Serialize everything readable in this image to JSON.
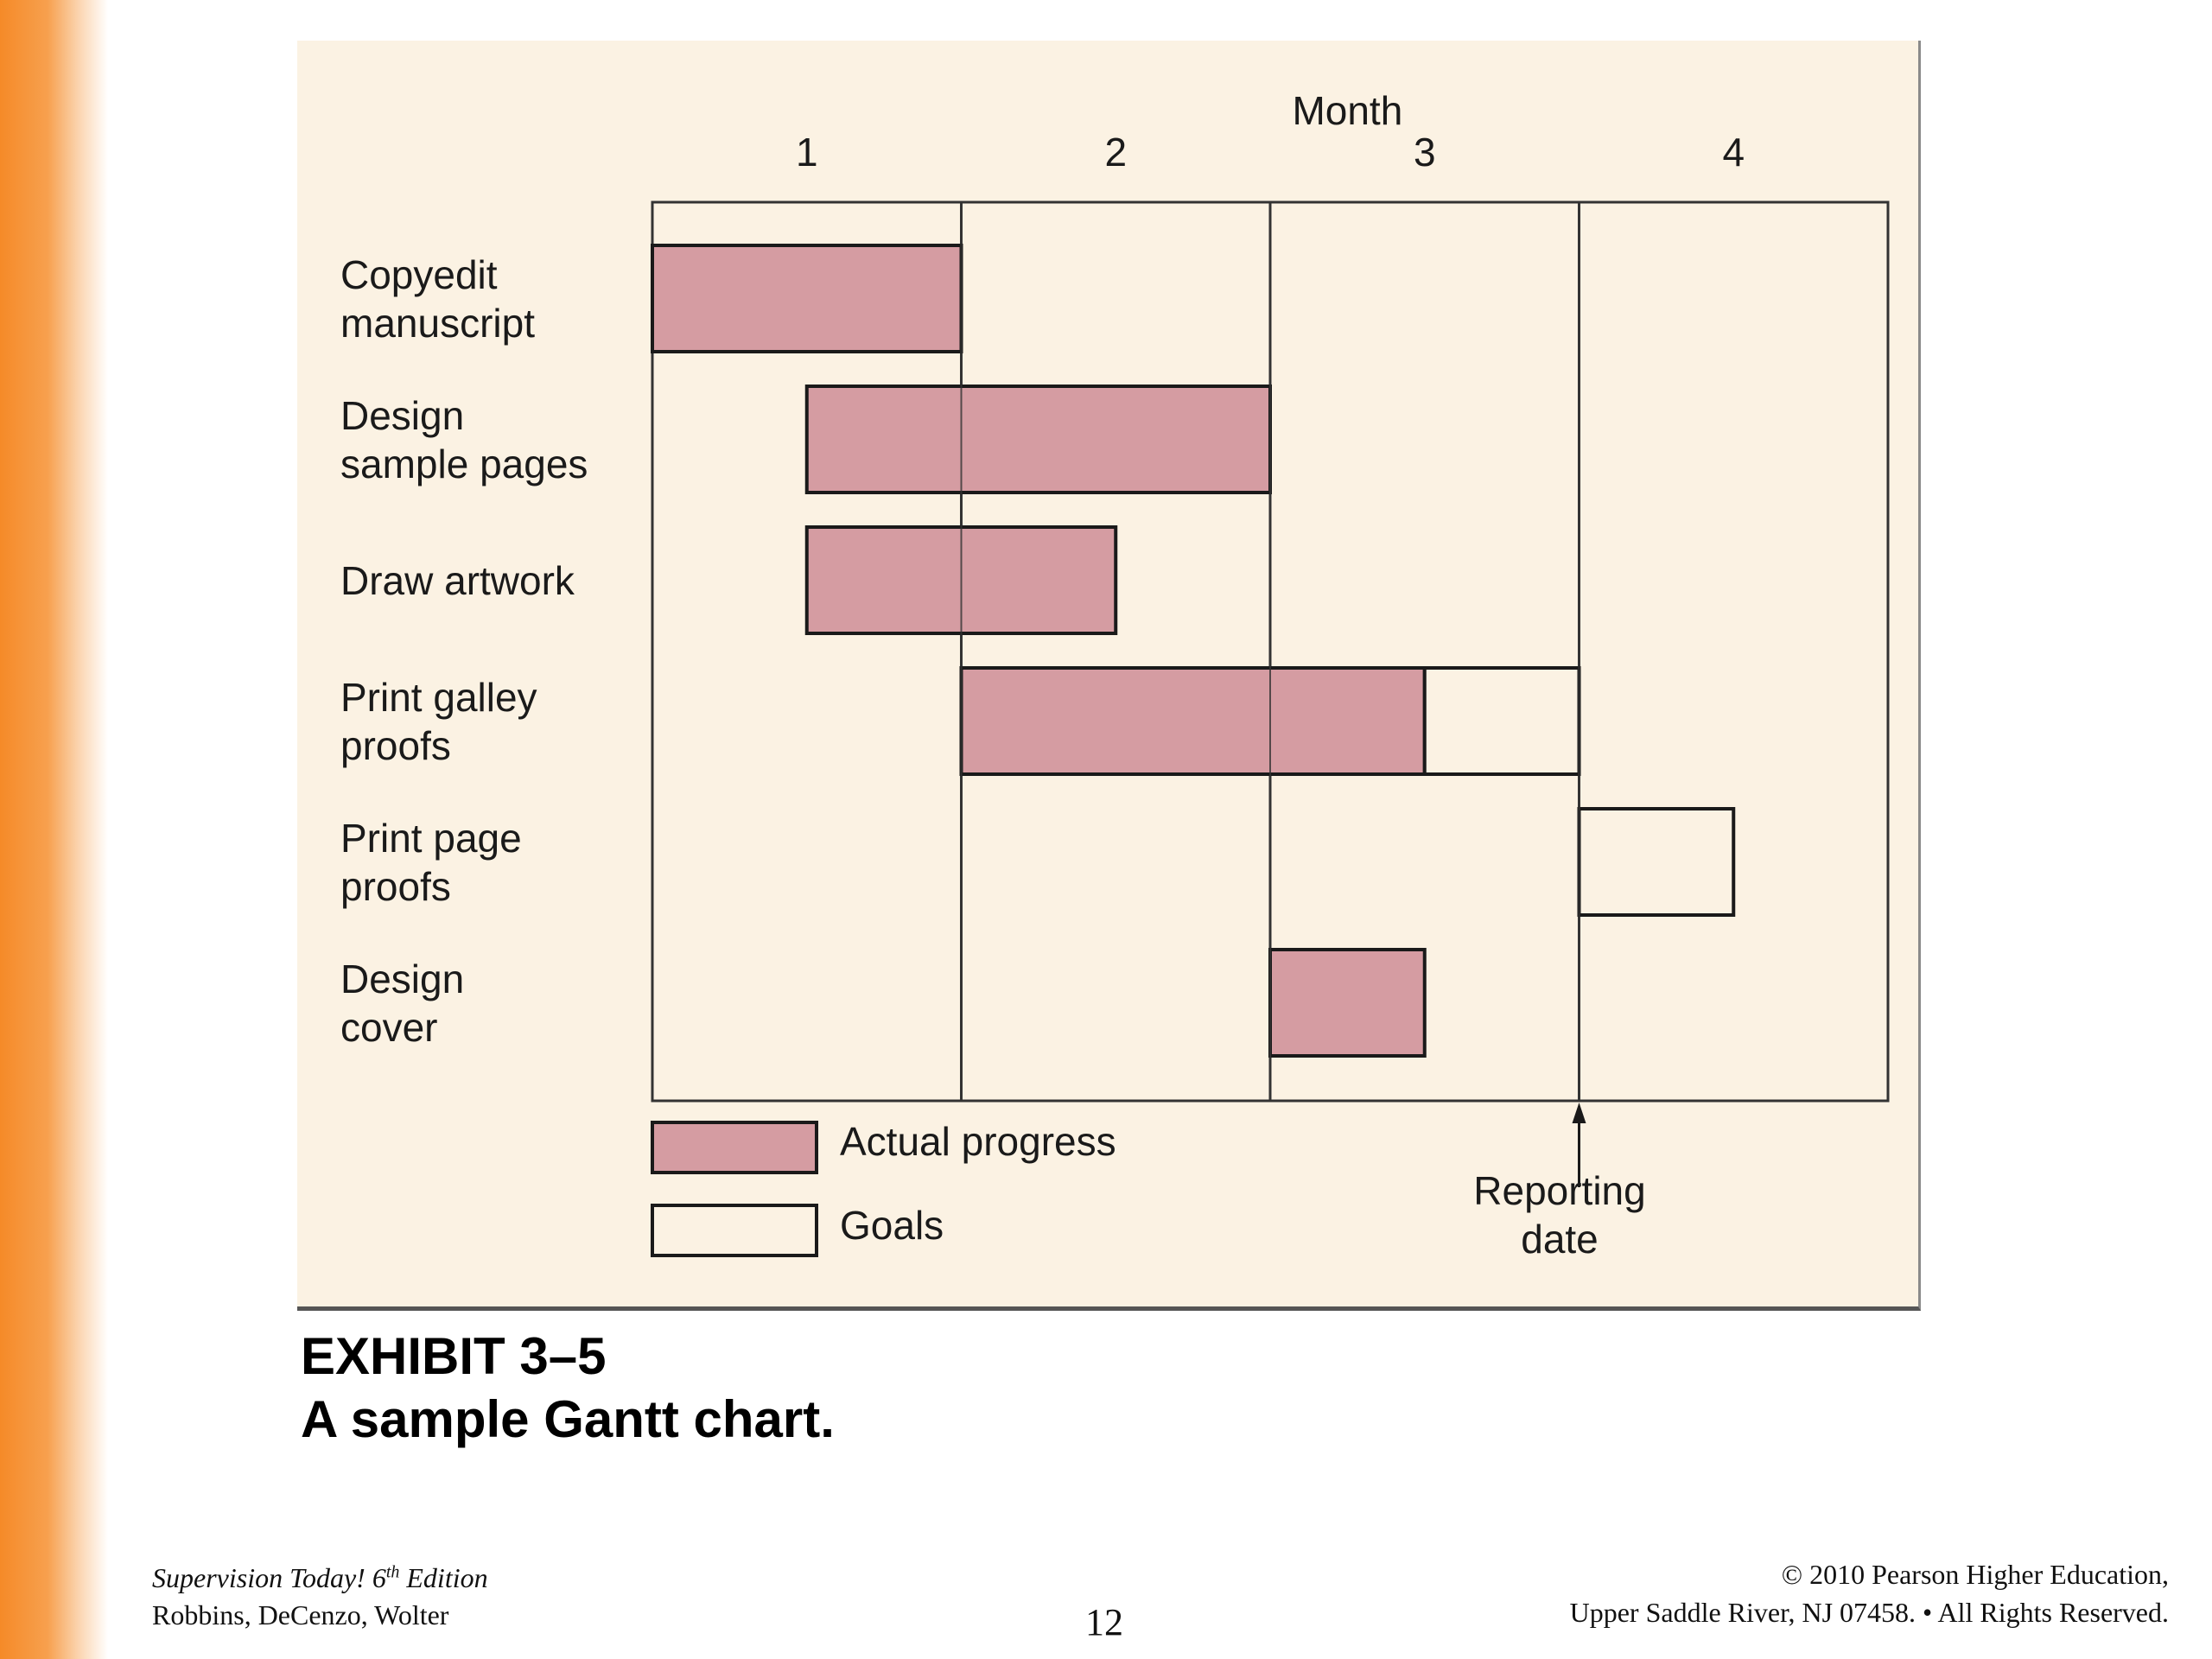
{
  "chart_data": {
    "type": "gantt",
    "title": "A sample Gantt chart.",
    "exhibit": "EXHIBIT 3–5",
    "x_axis_title": "Month",
    "month_labels": [
      "1",
      "2",
      "3",
      "4"
    ],
    "xlim": [
      0,
      4
    ],
    "tasks": [
      {
        "label_lines": [
          "Copyedit",
          "manuscript"
        ],
        "actual": [
          0,
          1.0
        ],
        "goal": null
      },
      {
        "label_lines": [
          "Design",
          "sample pages"
        ],
        "actual": [
          0.5,
          2.0
        ],
        "goal": null
      },
      {
        "label_lines": [
          "Draw artwork"
        ],
        "actual": [
          0.5,
          1.5
        ],
        "goal": null
      },
      {
        "label_lines": [
          "Print galley",
          "proofs"
        ],
        "actual": [
          1.0,
          2.5
        ],
        "goal": [
          2.5,
          3.0
        ]
      },
      {
        "label_lines": [
          "Print page",
          "proofs"
        ],
        "actual": null,
        "goal": [
          3.0,
          3.5
        ]
      },
      {
        "label_lines": [
          "Design",
          "cover"
        ],
        "actual": [
          2.0,
          2.5
        ],
        "goal": null
      }
    ],
    "legend": [
      {
        "label": "Actual progress",
        "type": "actual"
      },
      {
        "label": "Goals",
        "type": "goal"
      }
    ],
    "reporting_date": 3.0,
    "reporting_label_lines": [
      "Reporting",
      "date"
    ],
    "colors": {
      "actual": "#d59ca2",
      "goal": "#fbf2e3",
      "panel": "#fbf2e3",
      "stroke": "#1a1a1a",
      "grid": "#333333"
    }
  },
  "footer": {
    "book_title": "Supervision Today! 6",
    "book_edition_sup": "th",
    "book_edition_tail": " Edition",
    "authors": "Robbins, DeCenzo, Wolter",
    "page_number": "12",
    "copyright": "© 2010 Pearson Higher Education,",
    "address": "Upper Saddle River, NJ 07458. • All Rights Reserved."
  },
  "colors": {
    "accent_bar": "#f58a28"
  }
}
